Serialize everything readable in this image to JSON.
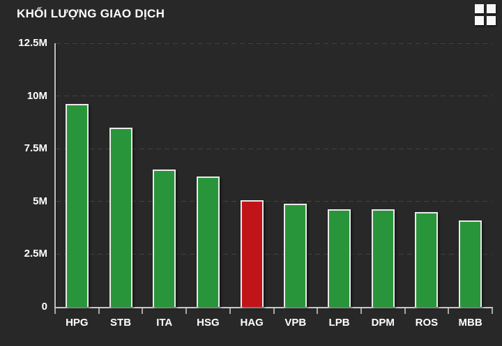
{
  "header": {
    "menu_icon": "grid-menu-icon"
  },
  "colors": {
    "background": "#282828",
    "text": "#ffffff",
    "grid_line": "#424242",
    "axis_line": "#c9c9c9",
    "tick": "#a8a8a8",
    "bar_border": "#ebebeb",
    "bar_green": "#29953a",
    "bar_red": "#c01419"
  },
  "chart_data": {
    "type": "bar",
    "title": "KHỐI LƯỢNG GIAO DỊCH",
    "categories": [
      "HPG",
      "STB",
      "ITA",
      "HSG",
      "HAG",
      "VPB",
      "LPB",
      "DPM",
      "ROS",
      "MBB"
    ],
    "values": [
      9630000,
      8500000,
      6520000,
      6170000,
      5050000,
      4900000,
      4620000,
      4640000,
      4510000,
      4110000
    ],
    "values_label_unit": "M",
    "highlight_index": 4,
    "bar_color_default": "#29953a",
    "bar_color_highlight": "#c01419",
    "xlabel": "",
    "ylabel": "",
    "y_axis": {
      "min": 0,
      "max": 12500000,
      "tick_interval": 2500000,
      "tick_labels": [
        "0",
        "2.5M",
        "5M",
        "7.5M",
        "10M",
        "12.5M"
      ]
    },
    "grid": "dashed-horizontal",
    "legend": "none"
  }
}
